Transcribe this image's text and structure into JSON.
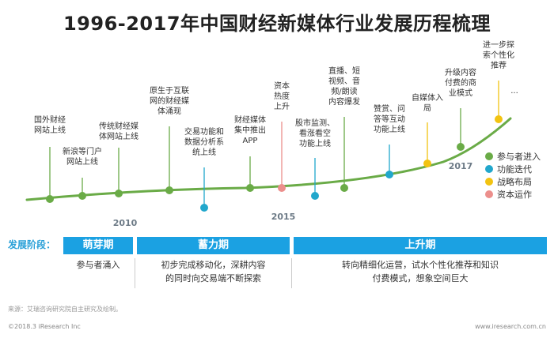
{
  "title": "1996-2017年中国财经新媒体行业发展历程梳理",
  "colors": {
    "participant_entry": "#6aab47",
    "feature_iteration": "#21a7cc",
    "strategic_layout": "#f2c311",
    "capital_operation": "#ec8f8c",
    "curve": "#6aab47",
    "phase_bar": "#1ba1e2"
  },
  "year_labels": [
    "2010",
    "2015",
    "2017"
  ],
  "events": [
    {
      "type": "participant_entry",
      "lines": [
        "国外财经",
        "网站上线"
      ]
    },
    {
      "type": "participant_entry",
      "lines": [
        "新浪等门户",
        "网站上线"
      ]
    },
    {
      "type": "participant_entry",
      "lines": [
        "传统财经媒",
        "体网站上线"
      ]
    },
    {
      "type": "participant_entry",
      "lines": [
        "原生于互联",
        "网的财经媒",
        "体涌现"
      ]
    },
    {
      "type": "feature_iteration",
      "lines": [
        "交易功能和",
        "数据分析系",
        "统上线"
      ]
    },
    {
      "type": "participant_entry",
      "lines": [
        "财经媒体",
        "集中推出",
        "APP"
      ]
    },
    {
      "type": "capital_operation",
      "lines": [
        "资本",
        "热度",
        "上升"
      ]
    },
    {
      "type": "feature_iteration",
      "lines": [
        "股市监测、",
        "看涨看空",
        "功能上线"
      ]
    },
    {
      "type": "participant_entry",
      "lines": [
        "直播、短",
        "视频、音",
        "频/朗读",
        "内容爆发"
      ]
    },
    {
      "type": "feature_iteration",
      "lines": [
        "赞赏、问",
        "答等互动",
        "功能上线"
      ]
    },
    {
      "type": "strategic_layout",
      "lines": [
        "自媒体入",
        "局"
      ]
    },
    {
      "type": "participant_entry",
      "lines": [
        "升级内容",
        "付费的商",
        "业模式"
      ]
    },
    {
      "type": "strategic_layout",
      "lines": [
        "进一步探",
        "索个性化",
        "推荐"
      ]
    },
    {
      "type": "strategic_layout",
      "lines": [
        "..."
      ]
    }
  ],
  "legend": [
    {
      "key": "participant_entry",
      "label": "参与者进入"
    },
    {
      "key": "feature_iteration",
      "label": "功能迭代"
    },
    {
      "key": "strategic_layout",
      "label": "战略布局"
    },
    {
      "key": "capital_operation",
      "label": "资本运作"
    }
  ],
  "stage_label": "发展阶段：",
  "phases": [
    {
      "name": "萌芽期",
      "desc": [
        "参与者涌入"
      ]
    },
    {
      "name": "蓄力期",
      "desc": [
        "初步完成移动化，深耕内容",
        "的同时向交易端不断探索"
      ]
    },
    {
      "name": "上升期",
      "desc": [
        "转向精细化运营，试水个性化推荐和知识",
        "付费模式，想象空间巨大"
      ]
    }
  ],
  "source": "来源：艾瑞咨询研究院自主研究及绘制。",
  "footer_left": "©2018.3 iResearch Inc",
  "footer_right": "www.iresearch.com.cn"
}
